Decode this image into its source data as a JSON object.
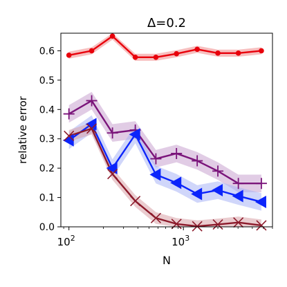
{
  "chart_data": {
    "type": "line",
    "title": "Δ=0.2",
    "xlabel": "N",
    "ylabel": "relative error",
    "xscale": "log",
    "xlim": [
      85,
      6000
    ],
    "ylim": [
      0.0,
      0.66
    ],
    "x_ticks": [
      {
        "value": 100,
        "base": "10",
        "exp": "2"
      },
      {
        "value": 1000,
        "base": "10",
        "exp": "3"
      }
    ],
    "y_ticks": [
      "0.0",
      "0.1",
      "0.2",
      "0.3",
      "0.4",
      "0.5",
      "0.6"
    ],
    "grid": false,
    "legend": "none",
    "x": [
      100,
      158,
      251,
      398,
      631,
      1000,
      1585,
      2512,
      3981,
      6310
    ],
    "series": [
      {
        "color": "#e8000b",
        "band": "#f08a8a",
        "marker": "circle",
        "points": [
          [
            100,
            0.585
          ],
          [
            158,
            0.6
          ],
          [
            240,
            0.65
          ],
          [
            380,
            0.578
          ],
          [
            575,
            0.578
          ],
          [
            870,
            0.59
          ],
          [
            1320,
            0.605
          ],
          [
            2000,
            0.592
          ],
          [
            3020,
            0.592
          ],
          [
            4800,
            0.6
          ]
        ],
        "err": 0.012
      },
      {
        "color": "#7a147a",
        "band": "#c9a3cf",
        "marker": "plus",
        "points": [
          [
            100,
            0.385
          ],
          [
            158,
            0.43
          ],
          [
            240,
            0.32
          ],
          [
            380,
            0.33
          ],
          [
            575,
            0.232
          ],
          [
            870,
            0.25
          ],
          [
            1320,
            0.225
          ],
          [
            2000,
            0.19
          ],
          [
            3020,
            0.148
          ],
          [
            4800,
            0.148
          ]
        ],
        "err": 0.03
      },
      {
        "color": "#0b24fb",
        "band": "#a9b4f5",
        "marker": "triangle-left",
        "points": [
          [
            100,
            0.295
          ],
          [
            158,
            0.35
          ],
          [
            240,
            0.2
          ],
          [
            380,
            0.315
          ],
          [
            575,
            0.178
          ],
          [
            870,
            0.15
          ],
          [
            1320,
            0.112
          ],
          [
            2000,
            0.125
          ],
          [
            3020,
            0.105
          ],
          [
            4800,
            0.085
          ]
        ],
        "err": 0.03
      },
      {
        "color": "#8c1a2b",
        "band": "#d8a3a8",
        "marker": "x",
        "points": [
          [
            100,
            0.31
          ],
          [
            158,
            0.335
          ],
          [
            240,
            0.18
          ],
          [
            380,
            0.088
          ],
          [
            575,
            0.03
          ],
          [
            870,
            0.01
          ],
          [
            1320,
            0.002
          ],
          [
            2000,
            0.008
          ],
          [
            3020,
            0.015
          ],
          [
            4800,
            0.005
          ]
        ],
        "err": 0.02
      }
    ]
  }
}
